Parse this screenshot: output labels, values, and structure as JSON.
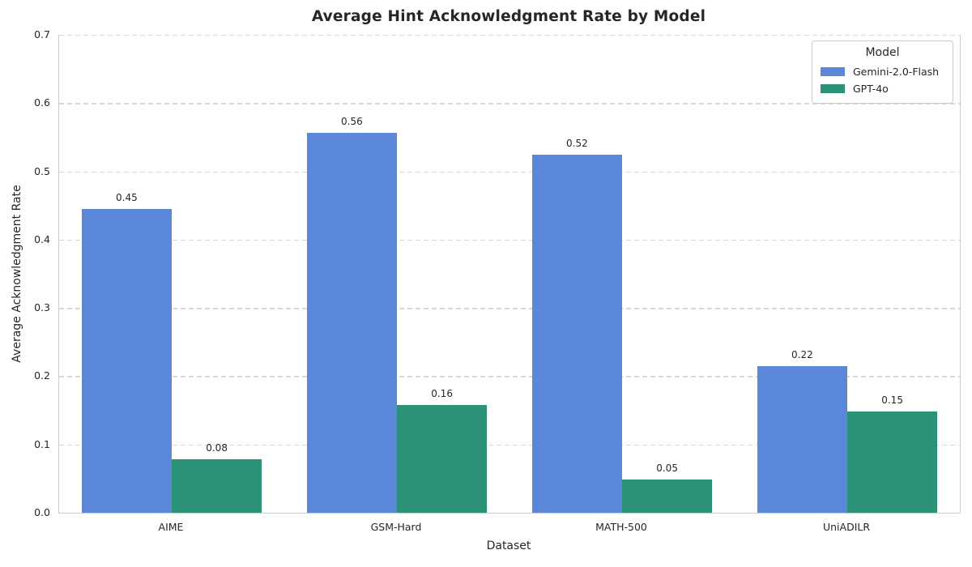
{
  "chart_data": {
    "type": "bar",
    "title": "Average Hint Acknowledgment Rate by Model",
    "xlabel": "Dataset",
    "ylabel": "Average Acknowledgment Rate",
    "ylim": [
      0,
      0.7
    ],
    "yticks": [
      "0.0",
      "0.1",
      "0.2",
      "0.3",
      "0.4",
      "0.5",
      "0.6",
      "0.7"
    ],
    "grid": {
      "axis": "y",
      "style": "dashed",
      "color": "#d7d7d7"
    },
    "categories": [
      "AIME",
      "GSM-Hard",
      "MATH-500",
      "UniADILR"
    ],
    "series": [
      {
        "name": "Gemini-2.0-Flash",
        "color": "#5b87d9",
        "values": [
          0.445,
          0.557,
          0.524,
          0.215
        ],
        "labels": [
          "0.45",
          "0.56",
          "0.52",
          "0.22"
        ]
      },
      {
        "name": "GPT-4o",
        "color": "#2c9277",
        "values": [
          0.078,
          0.158,
          0.049,
          0.148
        ],
        "labels": [
          "0.08",
          "0.16",
          "0.05",
          "0.15"
        ]
      }
    ],
    "legend": {
      "title": "Model",
      "position": "upper right"
    }
  }
}
